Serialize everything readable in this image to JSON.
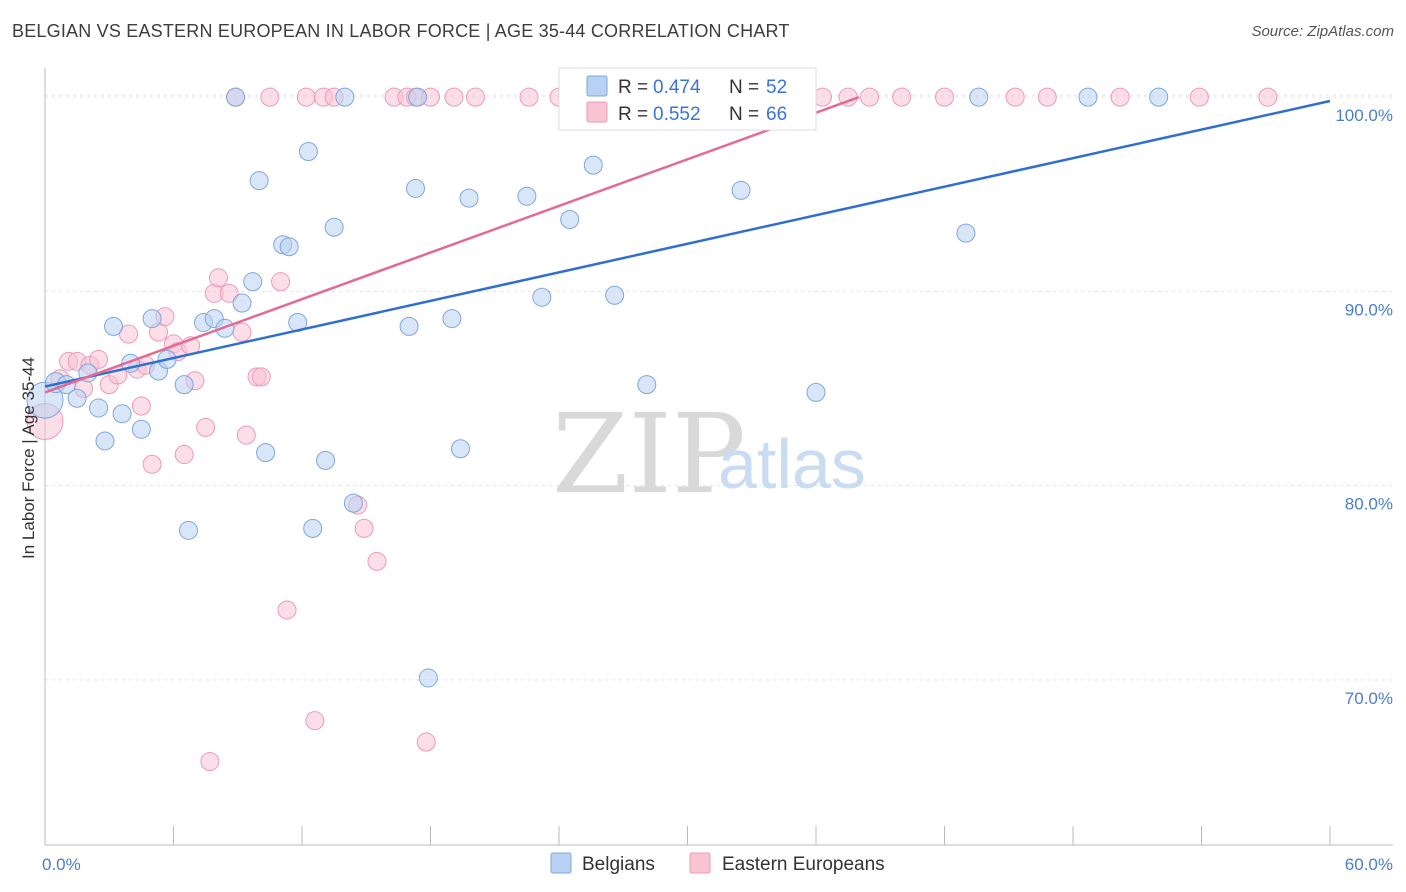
{
  "title": "BELGIAN VS EASTERN EUROPEAN IN LABOR FORCE | AGE 35-44 CORRELATION CHART",
  "source": "Source: ZipAtlas.com",
  "watermark": {
    "zip": "ZIP",
    "atlas": "atlas"
  },
  "chart_data": {
    "type": "scatter",
    "title": "BELGIAN VS EASTERN EUROPEAN IN LABOR FORCE | AGE 35-44 CORRELATION CHART",
    "xlabel": "",
    "ylabel": "In Labor Force | Age 35-44",
    "xlim": [
      0,
      60
    ],
    "ylim": [
      61.5,
      101.5
    ],
    "x_tick_labels": [
      "0.0%",
      "60.0%"
    ],
    "y_ticks": [
      70,
      80,
      90,
      100
    ],
    "y_tick_labels": [
      "70.0%",
      "80.0%",
      "90.0%",
      "100.0%"
    ],
    "legend": {
      "r_label": "R = ",
      "n_label": "N = ",
      "entries": [
        {
          "name": "Belgians",
          "r": "0.474",
          "n": "52"
        },
        {
          "name": "Eastern Europeans",
          "r": "0.552",
          "n": "66"
        }
      ]
    },
    "colors": {
      "belgians_fill": "#b9d1f2",
      "belgians_stroke": "#7ea6e0",
      "belgians_line": "#2f6fd0",
      "eastern_fill": "#f8c3d3",
      "eastern_stroke": "#ee9ab5",
      "eastern_line": "#e56a93"
    },
    "series": [
      {
        "name": "Belgians",
        "trend": {
          "x": [
            0,
            60
          ],
          "y": [
            85.1,
            99.8
          ]
        },
        "points": [
          [
            0.0,
            84.4,
            18
          ],
          [
            0.5,
            85.3,
            10
          ],
          [
            1.0,
            85.2,
            9
          ],
          [
            1.5,
            84.5,
            9
          ],
          [
            2.0,
            85.8,
            9
          ],
          [
            2.5,
            84.0,
            9
          ],
          [
            2.8,
            82.3,
            9
          ],
          [
            3.2,
            88.2,
            9
          ],
          [
            3.6,
            83.7,
            9
          ],
          [
            4.0,
            86.3,
            9
          ],
          [
            4.5,
            82.9,
            9
          ],
          [
            5.0,
            88.6,
            9
          ],
          [
            5.3,
            85.9,
            9
          ],
          [
            5.7,
            86.5,
            9
          ],
          [
            6.5,
            85.2,
            9
          ],
          [
            6.7,
            77.7,
            9
          ],
          [
            7.4,
            88.4,
            9
          ],
          [
            7.9,
            88.6,
            9
          ],
          [
            8.4,
            88.1,
            9
          ],
          [
            8.9,
            100.0,
            9
          ],
          [
            9.2,
            89.4,
            9
          ],
          [
            9.7,
            90.5,
            9
          ],
          [
            10.0,
            95.7,
            9
          ],
          [
            10.3,
            81.7,
            9
          ],
          [
            11.1,
            92.4,
            9
          ],
          [
            11.4,
            92.3,
            9
          ],
          [
            11.8,
            88.4,
            9
          ],
          [
            12.3,
            97.2,
            9
          ],
          [
            12.5,
            77.8,
            9
          ],
          [
            13.1,
            81.3,
            9
          ],
          [
            13.5,
            93.3,
            9
          ],
          [
            14.0,
            100.0,
            9
          ],
          [
            14.4,
            79.1,
            9
          ],
          [
            17.0,
            88.2,
            9
          ],
          [
            17.3,
            95.3,
            9
          ],
          [
            17.4,
            100.0,
            9
          ],
          [
            17.9,
            70.1,
            9
          ],
          [
            19.0,
            88.6,
            9
          ],
          [
            19.4,
            81.9,
            9
          ],
          [
            19.8,
            94.8,
            9
          ],
          [
            22.5,
            94.9,
            9
          ],
          [
            23.2,
            89.7,
            9
          ],
          [
            24.5,
            93.7,
            9
          ],
          [
            25.6,
            96.5,
            9
          ],
          [
            26.6,
            89.8,
            9
          ],
          [
            28.1,
            85.2,
            9
          ],
          [
            32.5,
            95.2,
            9
          ],
          [
            36.0,
            84.8,
            9
          ],
          [
            43.0,
            93.0,
            9
          ],
          [
            43.6,
            100.0,
            9
          ],
          [
            48.7,
            100.0,
            9
          ],
          [
            52.0,
            100.0,
            9
          ]
        ]
      },
      {
        "name": "Eastern Europeans",
        "trend": {
          "x": [
            0,
            38
          ],
          "y": [
            84.8,
            100.0
          ]
        },
        "points": [
          [
            0.0,
            83.3,
            18
          ],
          [
            0.7,
            85.5,
            9
          ],
          [
            1.1,
            86.4,
            9
          ],
          [
            1.5,
            86.4,
            9
          ],
          [
            1.8,
            85.0,
            9
          ],
          [
            2.1,
            86.2,
            9
          ],
          [
            2.5,
            86.5,
            9
          ],
          [
            3.0,
            85.2,
            9
          ],
          [
            3.4,
            85.7,
            9
          ],
          [
            3.9,
            87.8,
            9
          ],
          [
            4.3,
            86.0,
            9
          ],
          [
            4.5,
            84.1,
            9
          ],
          [
            4.7,
            86.2,
            9
          ],
          [
            5.0,
            81.1,
            9
          ],
          [
            5.3,
            87.9,
            9
          ],
          [
            5.6,
            88.7,
            9
          ],
          [
            6.0,
            87.3,
            9
          ],
          [
            6.2,
            86.9,
            9
          ],
          [
            6.5,
            81.6,
            9
          ],
          [
            6.8,
            87.2,
            9
          ],
          [
            7.0,
            85.4,
            9
          ],
          [
            7.5,
            83.0,
            9
          ],
          [
            7.7,
            65.8,
            9
          ],
          [
            7.9,
            89.9,
            9
          ],
          [
            8.1,
            90.7,
            9
          ],
          [
            8.6,
            89.9,
            9
          ],
          [
            8.9,
            100.0,
            9
          ],
          [
            9.2,
            87.9,
            9
          ],
          [
            9.4,
            82.6,
            9
          ],
          [
            9.9,
            85.6,
            9
          ],
          [
            10.1,
            85.6,
            9
          ],
          [
            10.5,
            100.0,
            9
          ],
          [
            11.0,
            90.5,
            9
          ],
          [
            11.3,
            73.6,
            9
          ],
          [
            12.2,
            100.0,
            9
          ],
          [
            12.6,
            67.9,
            9
          ],
          [
            13.0,
            100.0,
            9
          ],
          [
            13.5,
            100.0,
            9
          ],
          [
            14.6,
            79.0,
            9
          ],
          [
            14.9,
            77.8,
            9
          ],
          [
            15.5,
            76.1,
            9
          ],
          [
            16.3,
            100.0,
            9
          ],
          [
            16.9,
            100.0,
            9
          ],
          [
            17.3,
            100.0,
            9
          ],
          [
            17.8,
            66.8,
            9
          ],
          [
            18.0,
            100.0,
            9
          ],
          [
            19.1,
            100.0,
            9
          ],
          [
            20.1,
            100.0,
            9
          ],
          [
            22.6,
            100.0,
            9
          ],
          [
            24.0,
            100.0,
            9
          ],
          [
            25.8,
            100.0,
            9
          ],
          [
            27.8,
            100.0,
            9
          ],
          [
            29.0,
            100.0,
            9
          ],
          [
            30.2,
            100.0,
            9
          ],
          [
            32.1,
            100.0,
            9
          ],
          [
            34.0,
            100.0,
            9
          ],
          [
            36.3,
            100.0,
            9
          ],
          [
            37.5,
            100.0,
            9
          ],
          [
            38.5,
            100.0,
            9
          ],
          [
            40.0,
            100.0,
            9
          ],
          [
            42.0,
            100.0,
            9
          ],
          [
            45.3,
            100.0,
            9
          ],
          [
            46.8,
            100.0,
            9
          ],
          [
            50.2,
            100.0,
            9
          ],
          [
            53.9,
            100.0,
            9
          ],
          [
            57.1,
            100.0,
            9
          ]
        ]
      }
    ]
  }
}
